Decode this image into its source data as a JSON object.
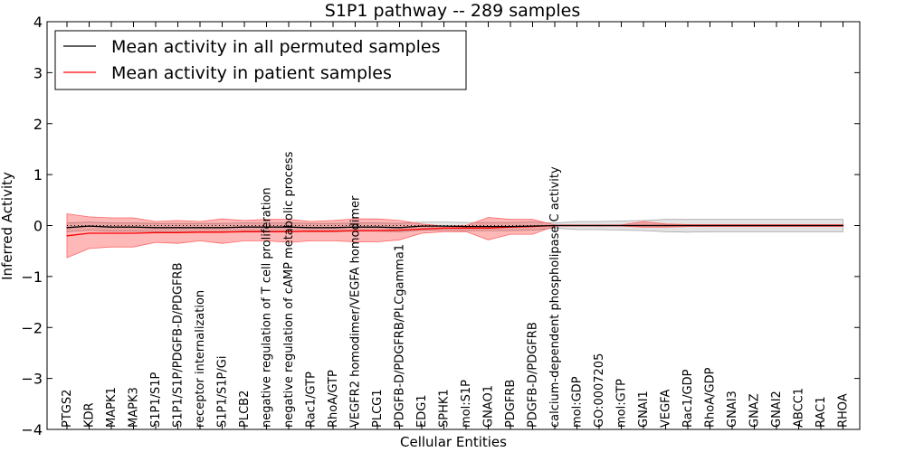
{
  "chart_data": {
    "type": "line",
    "title": "S1P1 pathway -- 289 samples",
    "xlabel": "Cellular Entities",
    "ylabel": "Inferred Activity",
    "ylim": [
      -4,
      4
    ],
    "yticks": [
      4,
      3,
      2,
      1,
      0,
      -1,
      -2,
      -3,
      -4
    ],
    "ytick_labels": [
      "4",
      "3",
      "2",
      "1",
      "0",
      "−1",
      "−2",
      "−3",
      "−4"
    ],
    "grid": false,
    "legend_position": "top-left",
    "categories": [
      "PTGS2",
      "KDR",
      "MAPK1",
      "MAPK3",
      "S1P1/S1P",
      "S1P1/S1P/PDGFB-D/PDGFRB",
      "receptor internalization",
      "S1P1/S1P/Gi",
      "PLCB2",
      "negative regulation of T cell proliferation",
      "negative regulation of cAMP metabolic process",
      "Rac1/GTP",
      "RhoA/GTP",
      "VEGFR2 homodimer/VEGFA homodimer",
      "PLCG1",
      "PDGFB-D/PDGFRB/PLCgamma1",
      "EDG1",
      "SPHK1",
      "mol:S1P",
      "GNAO1",
      "PDGFRB",
      "PDGFB-D/PDGFRB",
      "calcium-dependent phospholipase C activity",
      "mol:GDP",
      "GO:0007205",
      "mol:GTP",
      "GNAI1",
      "VEGFA",
      "Rac1/GDP",
      "RhoA/GDP",
      "GNAI3",
      "GNAZ",
      "GNAI2",
      "ABCC1",
      "RAC1",
      "RHOA"
    ],
    "series": [
      {
        "name": "Mean activity in all permuted samples",
        "color": "#000000",
        "values": [
          -0.04,
          -0.01,
          -0.03,
          -0.03,
          -0.04,
          -0.04,
          -0.04,
          -0.04,
          -0.03,
          -0.03,
          -0.03,
          -0.04,
          -0.04,
          -0.03,
          -0.03,
          -0.04,
          -0.01,
          -0.01,
          -0.02,
          -0.02,
          -0.02,
          -0.01,
          0.0,
          0.0,
          0.0,
          0.0,
          0.0,
          0.0,
          0.0,
          0.0,
          0.0,
          0.0,
          0.0,
          0.0,
          0.0,
          0.0
        ],
        "lower": [
          -0.12,
          -0.09,
          -0.11,
          -0.11,
          -0.12,
          -0.12,
          -0.12,
          -0.12,
          -0.11,
          -0.11,
          -0.11,
          -0.12,
          -0.12,
          -0.11,
          -0.11,
          -0.12,
          -0.09,
          -0.09,
          -0.1,
          -0.1,
          -0.1,
          -0.09,
          -0.05,
          -0.08,
          -0.08,
          -0.09,
          -0.1,
          -0.12,
          -0.13,
          -0.12,
          -0.12,
          -0.12,
          -0.12,
          -0.12,
          -0.12,
          -0.12
        ],
        "upper": [
          0.05,
          0.07,
          0.05,
          0.05,
          0.04,
          0.04,
          0.04,
          0.04,
          0.05,
          0.05,
          0.05,
          0.04,
          0.04,
          0.05,
          0.05,
          0.04,
          0.07,
          0.07,
          0.06,
          0.06,
          0.06,
          0.07,
          0.05,
          0.08,
          0.08,
          0.09,
          0.1,
          0.12,
          0.12,
          0.12,
          0.12,
          0.12,
          0.12,
          0.12,
          0.12,
          0.12
        ]
      },
      {
        "name": "Mean activity in patient samples",
        "color": "#ff0000",
        "values": [
          -0.2,
          -0.15,
          -0.15,
          -0.15,
          -0.14,
          -0.14,
          -0.13,
          -0.13,
          -0.12,
          -0.12,
          -0.12,
          -0.11,
          -0.11,
          -0.1,
          -0.1,
          -0.09,
          -0.07,
          -0.05,
          -0.05,
          -0.05,
          -0.03,
          -0.02,
          0.0,
          0.0,
          0.0,
          0.0,
          0.0,
          0.0,
          0.0,
          0.0,
          0.0,
          0.0,
          0.0,
          0.0,
          0.0,
          0.0
        ],
        "lower": [
          -0.63,
          -0.45,
          -0.42,
          -0.42,
          -0.33,
          -0.35,
          -0.3,
          -0.35,
          -0.3,
          -0.3,
          -0.33,
          -0.3,
          -0.3,
          -0.32,
          -0.32,
          -0.28,
          -0.15,
          -0.12,
          -0.12,
          -0.28,
          -0.17,
          -0.17,
          -0.01,
          -0.01,
          -0.01,
          -0.01,
          -0.03,
          -0.03,
          -0.02,
          -0.02,
          -0.02,
          -0.02,
          -0.02,
          -0.02,
          -0.02,
          -0.02
        ],
        "upper": [
          0.23,
          0.17,
          0.15,
          0.15,
          0.08,
          0.1,
          0.08,
          0.13,
          0.1,
          0.12,
          0.12,
          0.08,
          0.1,
          0.13,
          0.13,
          0.1,
          0.03,
          -0.01,
          0.0,
          0.16,
          0.12,
          0.12,
          0.01,
          0.01,
          0.01,
          0.01,
          0.08,
          0.03,
          0.02,
          0.02,
          0.02,
          0.02,
          0.02,
          0.02,
          0.02,
          0.02
        ]
      }
    ],
    "baseline": {
      "y": 0,
      "style": "dotted",
      "color": "#000000"
    }
  }
}
